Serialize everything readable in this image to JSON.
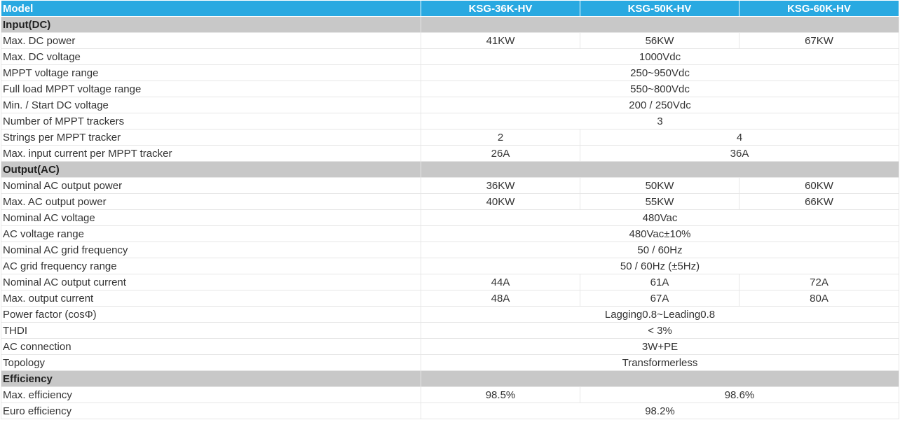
{
  "header": {
    "label": "Model",
    "models": [
      "KSG-36K-HV",
      "KSG-50K-HV",
      "KSG-60K-HV"
    ]
  },
  "sections": [
    {
      "title": "Input(DC)",
      "rows": [
        {
          "label": "Max. DC power",
          "values": [
            "41KW",
            "56KW",
            "67KW"
          ],
          "spans": [
            1,
            1,
            1
          ]
        },
        {
          "label": "Max. DC voltage",
          "values": [
            "1000Vdc"
          ],
          "spans": [
            3
          ]
        },
        {
          "label": "MPPT voltage range",
          "values": [
            "250~950Vdc"
          ],
          "spans": [
            3
          ]
        },
        {
          "label": "Full load MPPT voltage range",
          "values": [
            "550~800Vdc"
          ],
          "spans": [
            3
          ]
        },
        {
          "label": "Min. / Start DC voltage",
          "values": [
            "200 / 250Vdc"
          ],
          "spans": [
            3
          ]
        },
        {
          "label": "Number of MPPT trackers",
          "values": [
            "3"
          ],
          "spans": [
            3
          ]
        },
        {
          "label": "Strings per MPPT tracker",
          "values": [
            "2",
            "4"
          ],
          "spans": [
            1,
            2
          ]
        },
        {
          "label": "Max. input current per MPPT tracker",
          "values": [
            "26A",
            "36A"
          ],
          "spans": [
            1,
            2
          ]
        }
      ]
    },
    {
      "title": "Output(AC)",
      "rows": [
        {
          "label": "Nominal AC output power",
          "values": [
            "36KW",
            "50KW",
            "60KW"
          ],
          "spans": [
            1,
            1,
            1
          ]
        },
        {
          "label": "Max. AC output power",
          "values": [
            "40KW",
            "55KW",
            "66KW"
          ],
          "spans": [
            1,
            1,
            1
          ]
        },
        {
          "label": "Nominal AC voltage",
          "values": [
            "480Vac"
          ],
          "spans": [
            3
          ]
        },
        {
          "label": "AC voltage range",
          "values": [
            "480Vac±10%"
          ],
          "spans": [
            3
          ]
        },
        {
          "label": "Nominal AC grid frequency",
          "values": [
            "50 / 60Hz"
          ],
          "spans": [
            3
          ]
        },
        {
          "label": "AC grid frequency range",
          "values": [
            "50 / 60Hz  (±5Hz)"
          ],
          "spans": [
            3
          ]
        },
        {
          "label": "Nominal AC output current",
          "values": [
            "44A",
            "61A",
            "72A"
          ],
          "spans": [
            1,
            1,
            1
          ]
        },
        {
          "label": "Max. output current",
          "values": [
            "48A",
            "67A",
            "80A"
          ],
          "spans": [
            1,
            1,
            1
          ]
        },
        {
          "label": "Power factor (cosΦ)",
          "values": [
            "Lagging0.8~Leading0.8"
          ],
          "spans": [
            3
          ]
        },
        {
          "label": "THDI",
          "values": [
            "< 3%"
          ],
          "spans": [
            3
          ]
        },
        {
          "label": "AC connection",
          "values": [
            "3W+PE"
          ],
          "spans": [
            3
          ]
        },
        {
          "label": "Topology",
          "values": [
            "Transformerless"
          ],
          "spans": [
            3
          ]
        }
      ]
    },
    {
      "title": "Efficiency",
      "rows": [
        {
          "label": "Max. efficiency",
          "values": [
            "98.5%",
            "98.6%"
          ],
          "spans": [
            1,
            2
          ]
        },
        {
          "label": "Euro efficiency",
          "values": [
            "98.2%"
          ],
          "spans": [
            3
          ]
        }
      ]
    }
  ]
}
